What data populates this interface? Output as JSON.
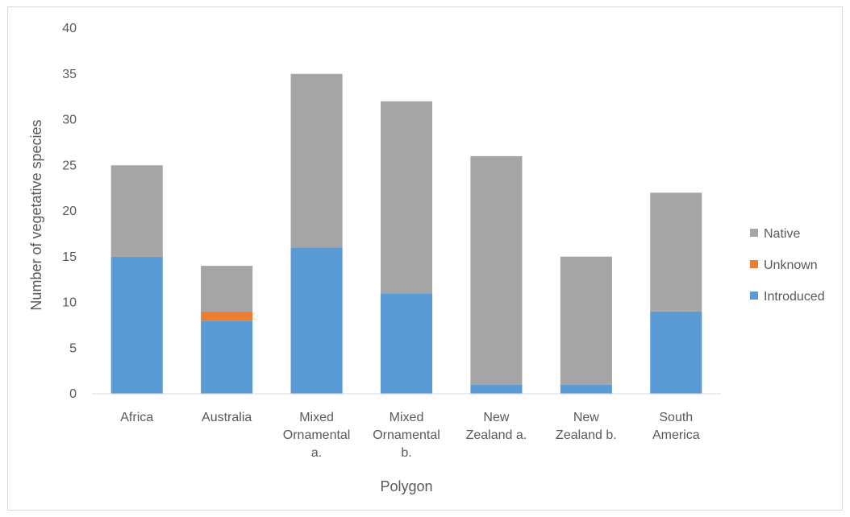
{
  "chart_data": {
    "type": "bar",
    "stacked": true,
    "title": "",
    "xlabel": "Polygon",
    "ylabel": "Number of vegetative species",
    "ylim": [
      0,
      40
    ],
    "yticks": [
      0,
      5,
      10,
      15,
      20,
      25,
      30,
      35,
      40
    ],
    "grid": false,
    "legend_position": "right",
    "categories": [
      [
        "Africa"
      ],
      [
        "Australia"
      ],
      [
        "Mixed",
        "Ornamental",
        "a."
      ],
      [
        "Mixed",
        "Ornamental",
        "b."
      ],
      [
        "New",
        "Zealand a."
      ],
      [
        "New",
        "Zealand b."
      ],
      [
        "South",
        "America"
      ]
    ],
    "series": [
      {
        "name": "Introduced",
        "color": "#5b9bd5",
        "values": [
          15,
          8,
          16,
          11,
          1,
          1,
          9
        ]
      },
      {
        "name": "Unknown",
        "color": "#ed7d31",
        "values": [
          0,
          1,
          0,
          0,
          0,
          0,
          0
        ]
      },
      {
        "name": "Native",
        "color": "#a5a5a5",
        "values": [
          10,
          5,
          19,
          21,
          25,
          14,
          13
        ]
      }
    ],
    "legend_order": [
      "Native",
      "Unknown",
      "Introduced"
    ]
  }
}
